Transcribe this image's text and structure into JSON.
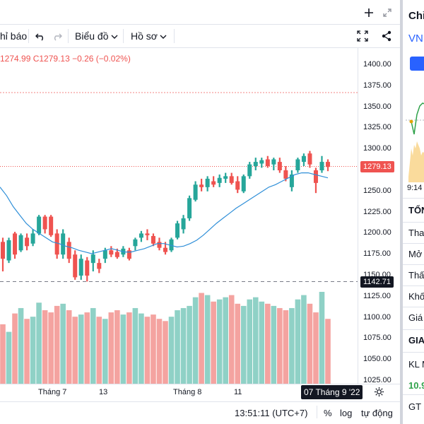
{
  "toolbar": {
    "indicators_label": "hỉ báo",
    "chart_label": "Biểu đồ",
    "profile_label": "Hồ sơ"
  },
  "legend": {
    "ohlc_text": "1274.99  C1279.13  −0.26 (−0.02%)"
  },
  "price_axis": {
    "ticks": [
      "1400.00",
      "1375.00",
      "1350.00",
      "1325.00",
      "1300.00",
      "1275.00",
      "1250.00",
      "1225.00",
      "1200.00",
      "1175.00",
      "1150.00",
      "1125.00",
      "1100.00",
      "1075.00",
      "1050.00",
      "1025.00"
    ],
    "current_price": "1279.13",
    "crosshair_price": "1142.71"
  },
  "time_axis": {
    "labels": [
      "Tháng 7",
      "13",
      "Tháng 8",
      "11"
    ],
    "crosshair_date": "07 Tháng 9 '22"
  },
  "status_bar": {
    "clock": "13:51:11 (UTC+7)",
    "percent": "%",
    "log": "log",
    "auto": "tự động"
  },
  "right_panel": {
    "title": "Chỉ",
    "symbol": "VNI",
    "time": "9:14",
    "section_header": "TỔN",
    "rows": [
      "Than",
      "Mở c",
      "Thấp",
      "Khối",
      "Giá t"
    ],
    "section_header2": "GIA",
    "row2": "KL M",
    "value2": "10.9",
    "row3": "GT M"
  },
  "colors": {
    "up": "#26a69a",
    "down": "#ef5350",
    "vol_up": "#8fd1c6",
    "vol_down": "#f4a3a0",
    "ma": "#2f8fd8",
    "panel_button": "#2962ff"
  },
  "icons": [
    "undo-icon",
    "redo-icon",
    "chevron-down-icon",
    "plus-icon",
    "expand-icon",
    "fullscreen-icon",
    "share-icon",
    "settings-icon"
  ],
  "chart_data": {
    "type": "candlestick",
    "ylim": [
      1025,
      1400
    ],
    "candles": [
      {
        "o": 1190,
        "h": 1195,
        "l": 1155,
        "c": 1170
      },
      {
        "o": 1168,
        "h": 1195,
        "l": 1165,
        "c": 1192
      },
      {
        "o": 1200,
        "h": 1202,
        "l": 1170,
        "c": 1175
      },
      {
        "o": 1180,
        "h": 1200,
        "l": 1178,
        "c": 1198
      },
      {
        "o": 1195,
        "h": 1200,
        "l": 1180,
        "c": 1185
      },
      {
        "o": 1188,
        "h": 1205,
        "l": 1185,
        "c": 1200
      },
      {
        "o": 1200,
        "h": 1222,
        "l": 1198,
        "c": 1220
      },
      {
        "o": 1220,
        "h": 1222,
        "l": 1200,
        "c": 1205
      },
      {
        "o": 1220,
        "h": 1222,
        "l": 1196,
        "c": 1198
      },
      {
        "o": 1200,
        "h": 1205,
        "l": 1170,
        "c": 1175
      },
      {
        "o": 1175,
        "h": 1205,
        "l": 1170,
        "c": 1200
      },
      {
        "o": 1190,
        "h": 1195,
        "l": 1165,
        "c": 1170
      },
      {
        "o": 1175,
        "h": 1180,
        "l": 1145,
        "c": 1148
      },
      {
        "o": 1150,
        "h": 1175,
        "l": 1145,
        "c": 1170
      },
      {
        "o": 1168,
        "h": 1172,
        "l": 1143,
        "c": 1150
      },
      {
        "o": 1165,
        "h": 1180,
        "l": 1155,
        "c": 1175
      },
      {
        "o": 1165,
        "h": 1170,
        "l": 1153,
        "c": 1158
      },
      {
        "o": 1170,
        "h": 1183,
        "l": 1165,
        "c": 1180
      },
      {
        "o": 1180,
        "h": 1185,
        "l": 1172,
        "c": 1175
      },
      {
        "o": 1178,
        "h": 1182,
        "l": 1170,
        "c": 1172
      },
      {
        "o": 1175,
        "h": 1185,
        "l": 1172,
        "c": 1182
      },
      {
        "o": 1180,
        "h": 1183,
        "l": 1168,
        "c": 1170
      },
      {
        "o": 1185,
        "h": 1195,
        "l": 1180,
        "c": 1193
      },
      {
        "o": 1195,
        "h": 1203,
        "l": 1190,
        "c": 1200
      },
      {
        "o": 1200,
        "h": 1205,
        "l": 1192,
        "c": 1198
      },
      {
        "o": 1197,
        "h": 1200,
        "l": 1185,
        "c": 1188
      },
      {
        "o": 1190,
        "h": 1195,
        "l": 1180,
        "c": 1183
      },
      {
        "o": 1183,
        "h": 1190,
        "l": 1175,
        "c": 1178
      },
      {
        "o": 1180,
        "h": 1195,
        "l": 1178,
        "c": 1193
      },
      {
        "o": 1195,
        "h": 1215,
        "l": 1193,
        "c": 1212
      },
      {
        "o": 1205,
        "h": 1222,
        "l": 1200,
        "c": 1218
      },
      {
        "o": 1218,
        "h": 1245,
        "l": 1215,
        "c": 1242
      },
      {
        "o": 1240,
        "h": 1262,
        "l": 1238,
        "c": 1258
      },
      {
        "o": 1258,
        "h": 1265,
        "l": 1250,
        "c": 1255
      },
      {
        "o": 1255,
        "h": 1268,
        "l": 1250,
        "c": 1265
      },
      {
        "o": 1262,
        "h": 1268,
        "l": 1255,
        "c": 1258
      },
      {
        "o": 1260,
        "h": 1270,
        "l": 1255,
        "c": 1266
      },
      {
        "o": 1265,
        "h": 1272,
        "l": 1260,
        "c": 1268
      },
      {
        "o": 1268,
        "h": 1272,
        "l": 1258,
        "c": 1260
      },
      {
        "o": 1262,
        "h": 1268,
        "l": 1248,
        "c": 1252
      },
      {
        "o": 1250,
        "h": 1270,
        "l": 1248,
        "c": 1268
      },
      {
        "o": 1268,
        "h": 1285,
        "l": 1265,
        "c": 1282
      },
      {
        "o": 1280,
        "h": 1290,
        "l": 1275,
        "c": 1285
      },
      {
        "o": 1283,
        "h": 1290,
        "l": 1278,
        "c": 1287
      },
      {
        "o": 1288,
        "h": 1292,
        "l": 1278,
        "c": 1280
      },
      {
        "o": 1282,
        "h": 1290,
        "l": 1275,
        "c": 1288
      },
      {
        "o": 1285,
        "h": 1290,
        "l": 1272,
        "c": 1275
      },
      {
        "o": 1275,
        "h": 1280,
        "l": 1262,
        "c": 1265
      },
      {
        "o": 1255,
        "h": 1275,
        "l": 1250,
        "c": 1270
      },
      {
        "o": 1275,
        "h": 1290,
        "l": 1272,
        "c": 1288
      },
      {
        "o": 1285,
        "h": 1295,
        "l": 1280,
        "c": 1292
      },
      {
        "o": 1295,
        "h": 1298,
        "l": 1278,
        "c": 1282
      },
      {
        "o": 1275,
        "h": 1278,
        "l": 1248,
        "c": 1260
      },
      {
        "o": 1275,
        "h": 1292,
        "l": 1272,
        "c": 1285
      },
      {
        "o": 1285,
        "h": 1288,
        "l": 1274,
        "c": 1279
      }
    ],
    "volume": [
      55,
      48,
      65,
      70,
      60,
      62,
      75,
      68,
      66,
      72,
      74,
      68,
      62,
      64,
      66,
      70,
      62,
      60,
      66,
      68,
      64,
      66,
      70,
      65,
      62,
      64,
      60,
      58,
      62,
      68,
      70,
      72,
      80,
      84,
      82,
      76,
      78,
      80,
      82,
      74,
      72,
      78,
      80,
      76,
      74,
      72,
      70,
      68,
      70,
      78,
      82,
      74,
      66,
      85,
      60
    ],
    "ma": [
      1255,
      1245,
      1232,
      1222,
      1212,
      1205,
      1200,
      1195,
      1190,
      1188,
      1185,
      1183,
      1180,
      1178,
      1176,
      1178,
      1180,
      1182,
      1180,
      1178,
      1178,
      1180,
      1182,
      1185,
      1188,
      1188,
      1186,
      1184,
      1185,
      1188,
      1192,
      1198,
      1205,
      1212,
      1218,
      1224,
      1230,
      1235,
      1240,
      1245,
      1250,
      1255,
      1258,
      1262,
      1266,
      1270,
      1272,
      1272,
      1270,
      1268,
      1266
    ]
  }
}
